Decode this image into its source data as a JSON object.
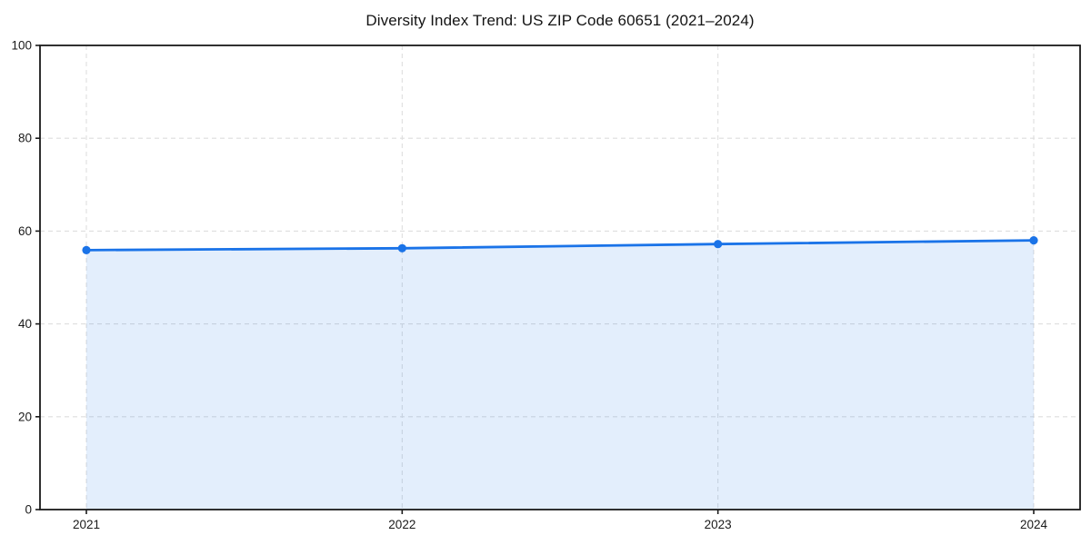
{
  "title": "Diversity Index Trend: US ZIP Code 60651 (2021–2024)",
  "chart_data": {
    "type": "area",
    "title": "Diversity Index Trend: US ZIP Code 60651 (2021–2024)",
    "x": [
      "2021",
      "2022",
      "2023",
      "2024"
    ],
    "series": [
      {
        "name": "Diversity Index",
        "values": [
          55.9,
          56.3,
          57.2,
          58.0
        ]
      }
    ],
    "xlabel": "",
    "ylabel": "",
    "ylim": [
      0,
      100
    ],
    "yticks": [
      0,
      20,
      40,
      60,
      80,
      100
    ],
    "xticks": [
      "2021",
      "2022",
      "2023",
      "2024"
    ],
    "grid": {
      "horizontal": true,
      "vertical": true,
      "style": "dashed"
    },
    "legend_position": "none",
    "colors": {
      "line": "#1a73e8",
      "marker": "#1a73e8",
      "fill": "rgba(26,115,232,0.12)",
      "grid": "#dedede",
      "spine": "#1a1a1a",
      "tick_text": "#1a1a1a",
      "background": "#ffffff"
    }
  }
}
